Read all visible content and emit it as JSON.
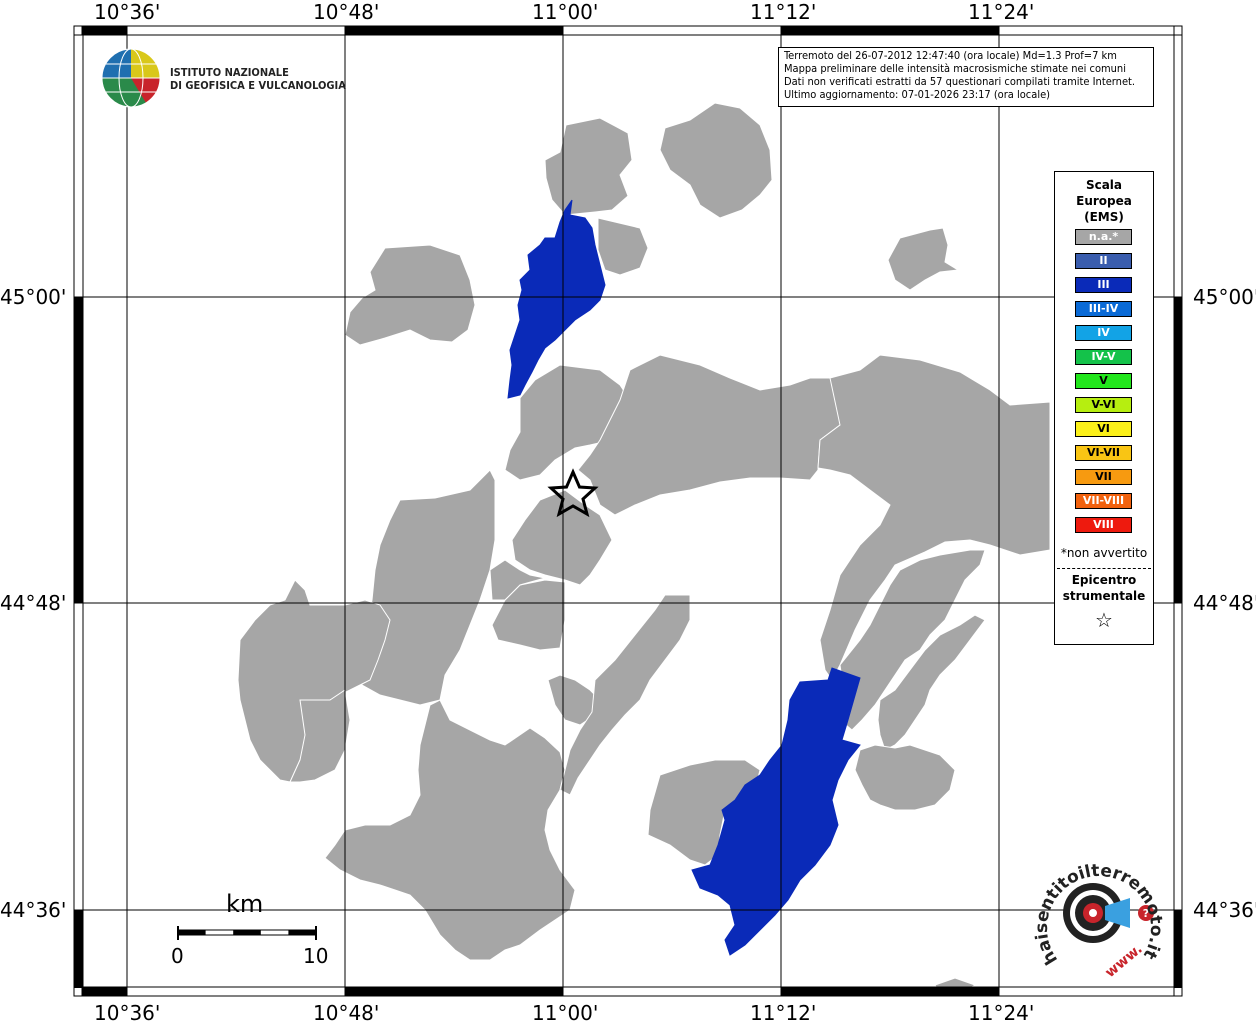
{
  "map": {
    "longitude_labels": [
      "10°36'",
      "10°48'",
      "11°00'",
      "11°12'",
      "11°24'"
    ],
    "latitude_labels": [
      "45°00'",
      "44°48'",
      "44°36'"
    ]
  },
  "info": {
    "line1": "Terremoto del 26-07-2012 12:47:40 (ora locale) Md=1.3 Prof=7 km",
    "line2": "Mappa preliminare delle intensità macrosismiche stimate nei comuni",
    "line3": "Dati non verificati estratti da 57 questionari compilati tramite Internet.",
    "line4": "Ultimo aggiornamento: 07-01-2026 23:17 (ora locale)"
  },
  "ingv": {
    "line1": "ISTITUTO NAZIONALE",
    "line2": "DI GEOFISICA E VULCANOLOGIA"
  },
  "legend": {
    "title1": "Scala",
    "title2": "Europea",
    "title3": "(EMS)",
    "items": [
      {
        "label": "n.a.*",
        "color": "#a6a6a6"
      },
      {
        "label": "II",
        "color": "#3a5dae"
      },
      {
        "label": "III",
        "color": "#0a2ab8"
      },
      {
        "label": "III-IV",
        "color": "#0a6ad6"
      },
      {
        "label": "IV",
        "color": "#12a3e6"
      },
      {
        "label": "IV-V",
        "color": "#14c24a"
      },
      {
        "label": "V",
        "color": "#22e61c"
      },
      {
        "label": "V-VI",
        "color": "#b6ee10"
      },
      {
        "label": "VI",
        "color": "#fbf01a"
      },
      {
        "label": "VI-VII",
        "color": "#f9c514"
      },
      {
        "label": "VII",
        "color": "#f79a10"
      },
      {
        "label": "VII-VIII",
        "color": "#f2620e"
      },
      {
        "label": "VIII",
        "color": "#ee1a0e"
      }
    ],
    "note": "*non avvertito",
    "epicenter1": "Epicentro",
    "epicenter2": "strumentale",
    "epicenter_symbol": "☆"
  },
  "scale": {
    "unit": "km",
    "start": "0",
    "end": "10"
  },
  "colors": {
    "gray_municipality": "#a6a6a6",
    "blue_municipality": "#0a2ab8"
  },
  "hsit": {
    "text": "haisentitoilterremoto.it",
    "www": "www."
  }
}
